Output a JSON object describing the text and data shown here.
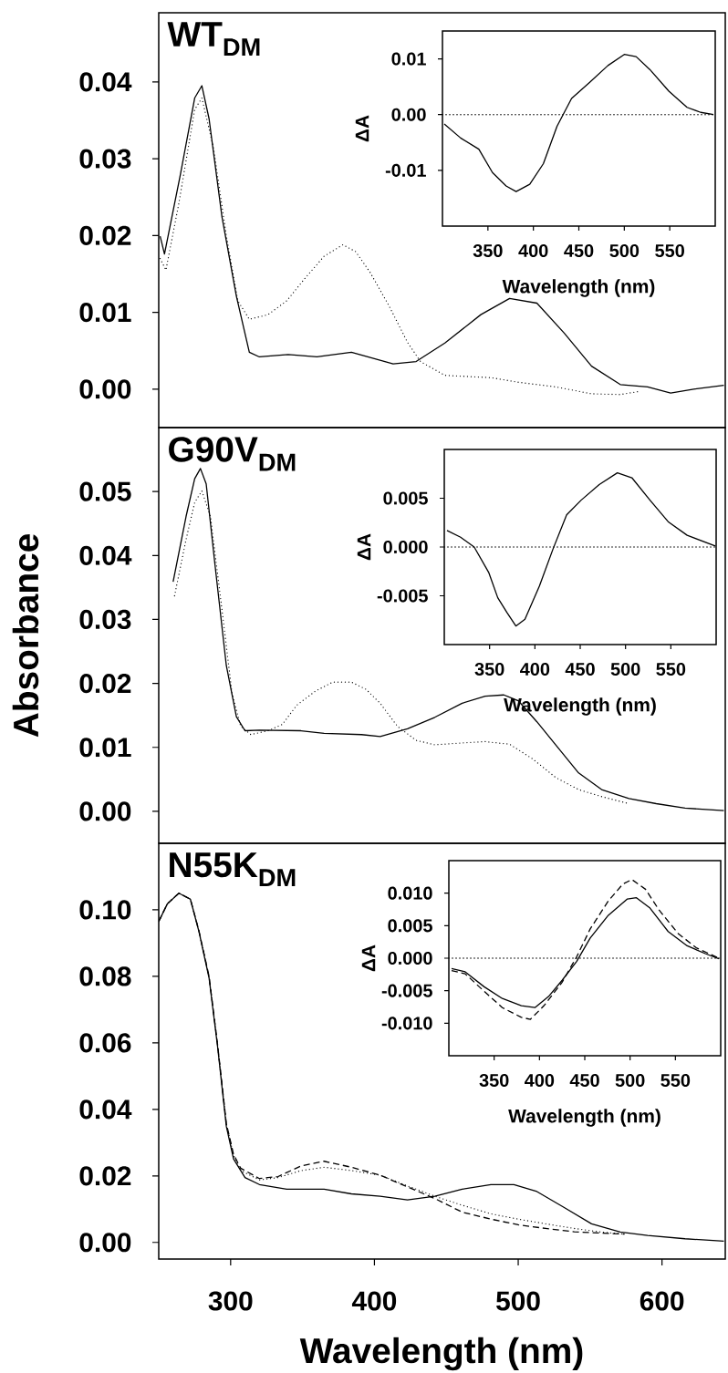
{
  "chart_data": [
    {
      "type": "line",
      "title": "WT$_{DM}$",
      "xlim": [
        250,
        644
      ],
      "ylim": [
        -0.005,
        0.049
      ],
      "tick_labels": "y",
      "yticks": [
        {
          "value": 0,
          "label": "0.00"
        },
        {
          "value": 0.01,
          "label": "0.01"
        },
        {
          "value": 0.02,
          "label": "0.02"
        },
        {
          "value": 0.03,
          "label": "0.03"
        },
        {
          "value": 0.04,
          "label": "0.04"
        }
      ],
      "series": [
        {
          "color": "#000000",
          "line_style": "solid",
          "x": [
            251,
            254,
            265,
            275,
            280,
            285,
            294,
            304,
            313,
            320,
            340,
            360,
            384,
            413,
            429,
            449,
            474,
            494,
            513,
            532,
            551,
            571,
            590,
            606,
            622,
            643
          ],
          "values": [
            0.0199,
            0.0176,
            0.0279,
            0.0379,
            0.0395,
            0.0352,
            0.0224,
            0.0121,
            0.0048,
            0.0042,
            0.0045,
            0.0042,
            0.0048,
            0.0033,
            0.0036,
            0.006,
            0.0097,
            0.0118,
            0.0112,
            0.0073,
            0.003,
            0.0006,
            0.0003,
            -0.0005,
            0,
            0.0005
          ]
        },
        {
          "color": "#000000",
          "line_style": "dotted",
          "x": [
            251,
            255,
            264,
            275,
            280,
            288,
            297,
            305,
            313,
            326,
            339,
            352,
            365,
            378,
            387,
            397,
            410,
            423,
            432,
            449,
            481,
            500,
            526,
            551,
            571,
            584
          ],
          "values": [
            0.017,
            0.0155,
            0.0242,
            0.0364,
            0.0379,
            0.0315,
            0.02,
            0.0115,
            0.0091,
            0.0097,
            0.0115,
            0.0145,
            0.0173,
            0.0188,
            0.0179,
            0.0152,
            0.0109,
            0.0061,
            0.0036,
            0.0018,
            0.0015,
            0.0009,
            0.0003,
            -0.0006,
            -0.0007,
            -0.0003
          ]
        }
      ]
    },
    {
      "type": "line",
      "xlabel": "Wavelength (nm)",
      "ylabel": "ΔA",
      "xlim": [
        300,
        600
      ],
      "ylim": [
        -0.02,
        0.015
      ],
      "xticks": [
        350,
        400,
        450,
        500,
        550
      ],
      "yticks": [
        {
          "value": -0.01,
          "label": "-0.01"
        },
        {
          "value": 0,
          "label": "0.00"
        },
        {
          "value": 0.01,
          "label": "0.01"
        }
      ],
      "ref_lines": [
        {
          "axis": "y",
          "value": 0,
          "color": "#000000",
          "line_style": "dotted"
        }
      ],
      "series": [
        {
          "color": "#000000",
          "line_style": "solid",
          "x": [
            302,
            320,
            340,
            355,
            370,
            381,
            396,
            411,
            426,
            442,
            462,
            482,
            500,
            513,
            528,
            549,
            569,
            584,
            598
          ],
          "values": [
            -0.0017,
            -0.0042,
            -0.0062,
            -0.0104,
            -0.0128,
            -0.0138,
            -0.0125,
            -0.0088,
            -0.0021,
            0.0029,
            0.0058,
            0.0088,
            0.0108,
            0.0104,
            0.0081,
            0.0042,
            0.0013,
            0.0004,
            0
          ]
        }
      ]
    },
    {
      "type": "line",
      "title": "G90V$_{DM}$",
      "ylabel": "Absorbance",
      "xlim": [
        250,
        644
      ],
      "ylim": [
        -0.005,
        0.06
      ],
      "tick_labels": "y",
      "yticks": [
        {
          "value": 0,
          "label": "0.00"
        },
        {
          "value": 0.01,
          "label": "0.01"
        },
        {
          "value": 0.02,
          "label": "0.02"
        },
        {
          "value": 0.03,
          "label": "0.03"
        },
        {
          "value": 0.04,
          "label": "0.04"
        },
        {
          "value": 0.05,
          "label": "0.05"
        }
      ],
      "series": [
        {
          "color": "#000000",
          "line_style": "solid",
          "x": [
            260,
            269,
            275,
            279,
            283,
            289,
            297,
            304,
            310,
            320,
            349,
            365,
            391,
            404,
            423,
            442,
            461,
            477,
            490,
            500,
            513,
            526,
            542,
            558,
            577,
            596,
            616,
            643
          ],
          "values": [
            0.0359,
            0.0461,
            0.052,
            0.0536,
            0.0512,
            0.0388,
            0.0228,
            0.0148,
            0.0126,
            0.0127,
            0.0126,
            0.0122,
            0.012,
            0.0117,
            0.0129,
            0.0147,
            0.0169,
            0.018,
            0.0182,
            0.0173,
            0.014,
            0.0104,
            0.006,
            0.0034,
            0.002,
            0.0012,
            0.0005,
            0.0001
          ]
        },
        {
          "color": "#000000",
          "line_style": "dotted",
          "x": [
            261,
            269,
            275,
            280,
            286,
            294,
            301,
            307,
            314,
            326,
            336,
            346,
            359,
            371,
            384,
            394,
            404,
            416,
            429,
            442,
            461,
            477,
            494,
            510,
            526,
            542,
            558,
            577
          ],
          "values": [
            0.0337,
            0.0425,
            0.0483,
            0.0501,
            0.0461,
            0.0315,
            0.0184,
            0.0133,
            0.012,
            0.0126,
            0.0136,
            0.0166,
            0.0188,
            0.0202,
            0.0202,
            0.0191,
            0.0169,
            0.0133,
            0.0111,
            0.0104,
            0.0107,
            0.0109,
            0.0105,
            0.0082,
            0.0053,
            0.0034,
            0.0023,
            0.0012
          ]
        }
      ]
    },
    {
      "type": "line",
      "xlabel": "Wavelength (nm)",
      "ylabel": "ΔA",
      "xlim": [
        300,
        600
      ],
      "ylim": [
        -0.01,
        0.01
      ],
      "xticks": [
        350,
        400,
        450,
        500,
        550
      ],
      "yticks": [
        {
          "value": -0.005,
          "label": "-0.005"
        },
        {
          "value": 0,
          "label": "0.000"
        },
        {
          "value": 0.005,
          "label": "0.005"
        }
      ],
      "ref_lines": [
        {
          "axis": "y",
          "value": 0,
          "color": "#000000",
          "line_style": "dotted"
        }
      ],
      "series": [
        {
          "color": "#000000",
          "line_style": "solid",
          "x": [
            303,
            318,
            333,
            349,
            359,
            369,
            379,
            389,
            405,
            420,
            435,
            451,
            471,
            491,
            507,
            527,
            547,
            568,
            599
          ],
          "values": [
            0.0017,
            0.001,
            0,
            -0.0026,
            -0.0052,
            -0.0067,
            -0.0081,
            -0.0074,
            -0.004,
            -0.0002,
            0.0033,
            0.0048,
            0.0064,
            0.0076,
            0.0071,
            0.0048,
            0.0026,
            0.0012,
            0.0001
          ]
        }
      ]
    },
    {
      "type": "line",
      "title": "N55K$_{DM}$",
      "xlabel": "Wavelength (nm)",
      "xlim": [
        250,
        644
      ],
      "ylim": [
        -0.005,
        0.12
      ],
      "xticks": [
        300,
        400,
        500,
        600
      ],
      "yticks": [
        {
          "value": 0,
          "label": "0.00"
        },
        {
          "value": 0.02,
          "label": "0.02"
        },
        {
          "value": 0.04,
          "label": "0.04"
        },
        {
          "value": 0.06,
          "label": "0.06"
        },
        {
          "value": 0.08,
          "label": "0.08"
        },
        {
          "value": 0.1,
          "label": "0.10"
        }
      ],
      "series": [
        {
          "color": "#000000",
          "line_style": "solid",
          "x": [
            250,
            256,
            264,
            272,
            278,
            285,
            291,
            297,
            302,
            310,
            320,
            339,
            365,
            384,
            404,
            423,
            442,
            461,
            481,
            497,
            513,
            532,
            551,
            571,
            590,
            616,
            643
          ],
          "values": [
            0.0965,
            0.1018,
            0.105,
            0.1032,
            0.0934,
            0.0795,
            0.0586,
            0.0349,
            0.0251,
            0.0195,
            0.0174,
            0.016,
            0.016,
            0.0146,
            0.0139,
            0.0128,
            0.0139,
            0.016,
            0.0174,
            0.0174,
            0.0153,
            0.0105,
            0.0056,
            0.0031,
            0.0021,
            0.0011,
            0.0004
          ]
        },
        {
          "color": "#000000",
          "line_style": "dotted",
          "x": [
            250,
            256,
            264,
            272,
            278,
            285,
            291,
            297,
            302,
            307,
            320,
            333,
            349,
            365,
            384,
            404,
            423,
            442,
            461,
            481,
            500,
            519,
            539,
            558,
            574
          ],
          "values": [
            0.0965,
            0.1018,
            0.105,
            0.1032,
            0.0936,
            0.08,
            0.0592,
            0.0358,
            0.0262,
            0.0216,
            0.0188,
            0.0195,
            0.0216,
            0.0226,
            0.0216,
            0.0202,
            0.017,
            0.0139,
            0.0112,
            0.0086,
            0.007,
            0.0056,
            0.0042,
            0.0031,
            0.0025
          ]
        },
        {
          "color": "#000000",
          "line_style": "dashed",
          "x": [
            250,
            256,
            264,
            272,
            278,
            285,
            291,
            297,
            302,
            307,
            320,
            333,
            349,
            365,
            384,
            404,
            423,
            442,
            461,
            481,
            500,
            519,
            539,
            558,
            574
          ],
          "values": [
            0.0965,
            0.1018,
            0.105,
            0.1032,
            0.0936,
            0.08,
            0.0592,
            0.0358,
            0.0265,
            0.0223,
            0.0192,
            0.0198,
            0.023,
            0.0244,
            0.0226,
            0.0202,
            0.0167,
            0.0132,
            0.0091,
            0.007,
            0.0053,
            0.0042,
            0.0032,
            0.0028,
            0.0025
          ]
        }
      ]
    },
    {
      "type": "line",
      "xlabel": "Wavelength (nm)",
      "ylabel": "ΔA",
      "xlim": [
        300,
        600
      ],
      "ylim": [
        -0.015,
        0.015
      ],
      "xticks": [
        350,
        400,
        450,
        500,
        550
      ],
      "yticks": [
        {
          "value": -0.01,
          "label": "-0.010"
        },
        {
          "value": -0.005,
          "label": "-0.005"
        },
        {
          "value": 0,
          "label": "0.000"
        },
        {
          "value": 0.005,
          "label": "0.005"
        },
        {
          "value": 0.01,
          "label": "0.010"
        }
      ],
      "ref_lines": [
        {
          "axis": "y",
          "value": 0,
          "color": "#000000",
          "line_style": "dotted"
        }
      ],
      "series": [
        {
          "color": "#000000",
          "line_style": "solid",
          "x": [
            303,
            318,
            339,
            359,
            380,
            395,
            410,
            425,
            441,
            456,
            476,
            497,
            507,
            522,
            542,
            563,
            583,
            598
          ],
          "values": [
            -0.0016,
            -0.0021,
            -0.0044,
            -0.0062,
            -0.0073,
            -0.0076,
            -0.0059,
            -0.0034,
            -0.0005,
            0.0031,
            0.0066,
            0.0091,
            0.0093,
            0.0077,
            0.0041,
            0.0019,
            0.0007,
            -0.0001
          ]
        },
        {
          "color": "#000000",
          "line_style": "dashed",
          "x": [
            303,
            318,
            339,
            359,
            380,
            390,
            405,
            425,
            441,
            456,
            476,
            492,
            502,
            517,
            532,
            553,
            573,
            598
          ],
          "values": [
            -0.0019,
            -0.0024,
            -0.0051,
            -0.0076,
            -0.0091,
            -0.0094,
            -0.0073,
            -0.0037,
            0.0002,
            0.0045,
            0.0088,
            0.0114,
            0.0121,
            0.0106,
            0.0074,
            0.0038,
            0.0016,
            0
          ]
        }
      ]
    }
  ]
}
